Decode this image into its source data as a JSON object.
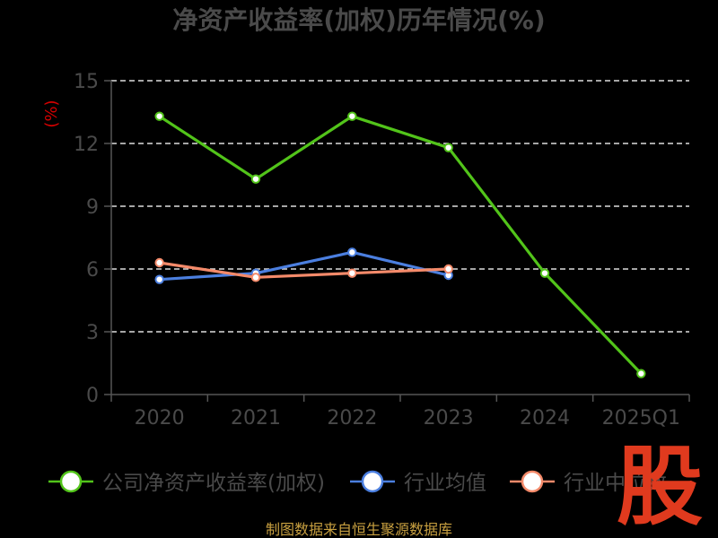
{
  "title": "净资产收益率(加权)历年情况(%)",
  "unit_label": "(%)",
  "source": "制图数据来自恒生聚源数据库",
  "logo_text": "股",
  "colors": {
    "background": "#000000",
    "axis": "#555555",
    "grid": "#dddddd",
    "text": "#4a4a4a",
    "unit": "#d40000",
    "source": "#c8a040",
    "logo": "#e03a1e"
  },
  "chart_data": {
    "type": "line",
    "title": "净资产收益率(加权)历年情况(%)",
    "ylabel": "(%)",
    "xlabel": "",
    "categories": [
      "2020",
      "2021",
      "2022",
      "2023",
      "2024",
      "2025Q1"
    ],
    "ylim": [
      0,
      15
    ],
    "yticks": [
      0,
      3,
      6,
      9,
      12,
      15
    ],
    "grid": true,
    "legend": "bottom",
    "series": [
      {
        "name": "公司净资产收益率(加权)",
        "color": "#52c41a",
        "values": [
          13.3,
          10.3,
          13.3,
          11.8,
          5.8,
          1.0
        ]
      },
      {
        "name": "行业均值",
        "color": "#4b7fe0",
        "values": [
          5.5,
          5.8,
          6.8,
          5.7,
          null,
          null
        ]
      },
      {
        "name": "行业中位数",
        "color": "#f48a6a",
        "values": [
          6.3,
          5.6,
          5.8,
          6.0,
          null,
          null
        ]
      }
    ]
  }
}
